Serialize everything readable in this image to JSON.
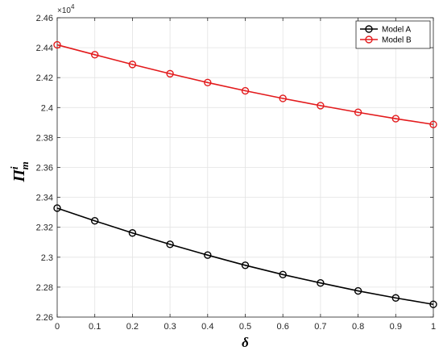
{
  "chart_data": {
    "type": "line",
    "title": "",
    "xlabel": "δ",
    "ylabel": {
      "base": "Π",
      "sup": "i",
      "sub": "m"
    },
    "y_exponent_label": {
      "base": "×10",
      "exp": "4"
    },
    "x": [
      0,
      0.1,
      0.2,
      0.3,
      0.4,
      0.5,
      0.6,
      0.7,
      0.8,
      0.9,
      1
    ],
    "xlim": [
      0,
      1
    ],
    "ylim": [
      2.26,
      2.46
    ],
    "xticks": [
      0,
      0.1,
      0.2,
      0.3,
      0.4,
      0.5,
      0.6,
      0.7,
      0.8,
      0.9,
      1
    ],
    "xtick_labels": [
      "0",
      "0.1",
      "0.2",
      "0.3",
      "0.4",
      "0.5",
      "0.6",
      "0.7",
      "0.8",
      "0.9",
      "1"
    ],
    "yticks": [
      2.26,
      2.28,
      2.3,
      2.32,
      2.34,
      2.36,
      2.38,
      2.4,
      2.42,
      2.44,
      2.46
    ],
    "ytick_labels": [
      "2.26",
      "2.28",
      "2.3",
      "2.32",
      "2.34",
      "2.36",
      "2.38",
      "2.4",
      "2.42",
      "2.44",
      "2.46"
    ],
    "grid": true,
    "legend_position": "top-right",
    "series": [
      {
        "name": "Model A",
        "color": "#000000",
        "marker": "circle",
        "values": [
          2.3328,
          2.3243,
          2.3162,
          2.3086,
          2.3014,
          2.2946,
          2.2884,
          2.2828,
          2.2775,
          2.2728,
          2.2685
        ]
      },
      {
        "name": "Model B",
        "color": "#e31a1c",
        "marker": "circle",
        "values": [
          2.4419,
          2.4353,
          2.4288,
          2.4226,
          2.4167,
          2.4112,
          2.4061,
          2.4013,
          2.3968,
          2.3926,
          2.3887
        ]
      }
    ]
  }
}
